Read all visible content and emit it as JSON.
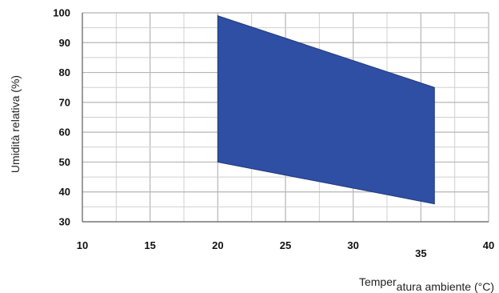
{
  "chart_data": {
    "type": "area",
    "title": "",
    "xlabel": {
      "main": "Temper",
      "subscript": "atura ambiente (°C)"
    },
    "ylabel": "Umidità relativa (%)",
    "xlim": [
      10,
      40
    ],
    "ylim": [
      30,
      100
    ],
    "x_ticks": [
      10,
      15,
      20,
      25,
      30,
      35,
      40
    ],
    "y_ticks": [
      100,
      90,
      80,
      70,
      60,
      50,
      40,
      30
    ],
    "grid": true,
    "region": {
      "name": "",
      "color": "#2E4FA3",
      "edge_color": "#23397A",
      "x": [
        20,
        36
      ],
      "upper": [
        99,
        75
      ],
      "lower": [
        50,
        36
      ]
    }
  }
}
